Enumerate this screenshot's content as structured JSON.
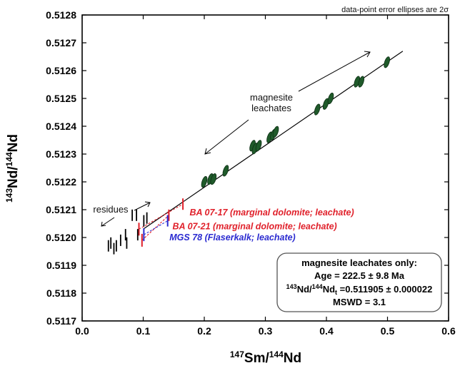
{
  "chart_data": {
    "type": "scatter",
    "xlabel": "147Sm/144Nd",
    "ylabel": "143Nd/144Nd",
    "xlabel_parts": {
      "sup": "147",
      "base1": "Sm/",
      "sup2": "144",
      "base2": "Nd"
    },
    "ylabel_parts": {
      "sup": "143",
      "base1": "Nd/",
      "sup2": "144",
      "base2": "Nd"
    },
    "xlim": [
      0.0,
      0.6
    ],
    "ylim": [
      0.5117,
      0.5128
    ],
    "x_ticks": [
      "0.0",
      "0.1",
      "0.2",
      "0.3",
      "0.4",
      "0.5",
      "0.6"
    ],
    "y_ticks": [
      "0.5117",
      "0.5118",
      "0.5119",
      "0.5120",
      "0.5121",
      "0.5122",
      "0.5123",
      "0.5124",
      "0.5125",
      "0.5126",
      "0.5127",
      "0.5128"
    ],
    "note": "data-point error ellipses are 2σ",
    "isochron": {
      "x": [
        0.1,
        0.525
      ],
      "y": [
        0.51203,
        0.51267
      ]
    },
    "magnesite_leachates": [
      {
        "x": 0.2,
        "y": 0.5122
      },
      {
        "x": 0.21,
        "y": 0.51221
      },
      {
        "x": 0.215,
        "y": 0.51221
      },
      {
        "x": 0.235,
        "y": 0.51224
      },
      {
        "x": 0.279,
        "y": 0.51233
      },
      {
        "x": 0.283,
        "y": 0.51232
      },
      {
        "x": 0.289,
        "y": 0.51233
      },
      {
        "x": 0.307,
        "y": 0.51236
      },
      {
        "x": 0.313,
        "y": 0.51237
      },
      {
        "x": 0.317,
        "y": 0.51238
      },
      {
        "x": 0.385,
        "y": 0.51246
      },
      {
        "x": 0.399,
        "y": 0.51248
      },
      {
        "x": 0.407,
        "y": 0.5125
      },
      {
        "x": 0.45,
        "y": 0.51256
      },
      {
        "x": 0.457,
        "y": 0.51256
      },
      {
        "x": 0.499,
        "y": 0.51263
      }
    ],
    "residues": [
      {
        "x": 0.043,
        "y": 0.51197
      },
      {
        "x": 0.047,
        "y": 0.51198
      },
      {
        "x": 0.052,
        "y": 0.51196
      },
      {
        "x": 0.056,
        "y": 0.51197
      },
      {
        "x": 0.063,
        "y": 0.51199
      },
      {
        "x": 0.071,
        "y": 0.51201
      },
      {
        "x": 0.073,
        "y": 0.51198
      },
      {
        "x": 0.082,
        "y": 0.51208
      },
      {
        "x": 0.089,
        "y": 0.51208
      },
      {
        "x": 0.091,
        "y": 0.51201
      },
      {
        "x": 0.101,
        "y": 0.51206
      },
      {
        "x": 0.106,
        "y": 0.51207
      }
    ],
    "pairs": [
      {
        "label": "BA 07-17 (marginal dolomite; leachate)",
        "color": "#e0202a",
        "res": {
          "x": 0.093,
          "y": 0.51203
        },
        "lea": {
          "x": 0.165,
          "y": 0.51212
        },
        "lx": 0.176,
        "ly": 0.51209
      },
      {
        "label": "BA 07-21 (marginal dolomite; leachate)",
        "color": "#e0202a",
        "res": {
          "x": 0.098,
          "y": 0.51199
        },
        "lea": {
          "x": 0.142,
          "y": 0.51208
        },
        "lx": 0.148,
        "ly": 0.51204
      },
      {
        "label": "MGS 78 (Flaserkalk; leachate)",
        "color": "#2a2ad0",
        "res": {
          "x": 0.101,
          "y": 0.51201
        },
        "lea": {
          "x": 0.14,
          "y": 0.51206
        },
        "lx": 0.143,
        "ly": 0.512
      }
    ],
    "annotations": {
      "magnesite_l1": "magnesite",
      "magnesite_l2": "leachates",
      "residues": "residues"
    },
    "result_box": {
      "title": "magnesite leachates only:",
      "age": "Age = 222.5 ± 9.8 Ma",
      "initial_sup1": "143",
      "initial_mid": "Nd/",
      "initial_sup2": "144",
      "initial_base": "Nd",
      "initial_sub": "t",
      "initial_value": " =0.511905 ± 0.000022",
      "mswd": "MSWD = 3.1"
    }
  }
}
